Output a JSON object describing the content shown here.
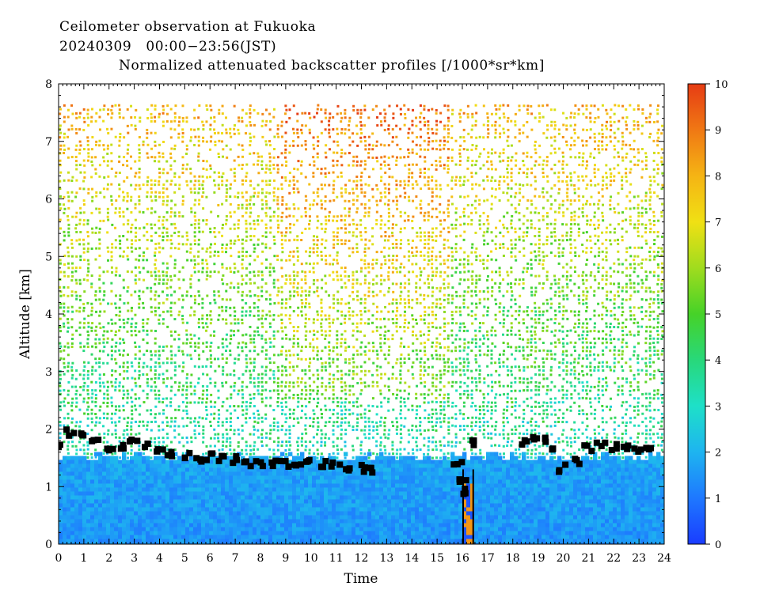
{
  "header": {
    "title": "Ceilometer observation at Fukuoka",
    "date_range": "20240309   00:00−23:56(JST)",
    "subtitle": "Normalized attenuated backscatter profiles [/1000*sr*km]"
  },
  "chart_data": {
    "type": "heatmap",
    "title": "Normalized attenuated backscatter profiles [/1000*sr*km]",
    "xlabel": "Time",
    "ylabel": "Altitude [km]",
    "xlim": [
      0,
      24
    ],
    "ylim": [
      0,
      8
    ],
    "x_ticks": [
      "0",
      "1",
      "2",
      "3",
      "4",
      "5",
      "6",
      "7",
      "8",
      "9",
      "10",
      "11",
      "12",
      "13",
      "14",
      "15",
      "16",
      "17",
      "18",
      "19",
      "20",
      "21",
      "22",
      "23",
      "24"
    ],
    "y_ticks": [
      "0",
      "1",
      "2",
      "3",
      "4",
      "5",
      "6",
      "7",
      "8"
    ],
    "data_top_km": 7.65,
    "colorbar": {
      "range": [
        0,
        10
      ],
      "ticks": [
        "0",
        "1",
        "2",
        "3",
        "4",
        "5",
        "6",
        "7",
        "8",
        "9",
        "10"
      ],
      "colors": [
        "#1a3cff",
        "#1e78ff",
        "#1eb4f0",
        "#1ee0c8",
        "#28d87a",
        "#46d228",
        "#a0dc1e",
        "#f0e014",
        "#f5b414",
        "#f07814",
        "#e63c14"
      ]
    },
    "cloud_base_km": [
      {
        "t": 0.1,
        "h": 1.75
      },
      {
        "t": 0.5,
        "h": 1.95
      },
      {
        "t": 1.0,
        "h": 1.88
      },
      {
        "t": 1.5,
        "h": 1.78
      },
      {
        "t": 2.0,
        "h": 1.7
      },
      {
        "t": 2.5,
        "h": 1.68
      },
      {
        "t": 3.0,
        "h": 1.75
      },
      {
        "t": 3.5,
        "h": 1.72
      },
      {
        "t": 4.0,
        "h": 1.62
      },
      {
        "t": 4.5,
        "h": 1.55
      },
      {
        "t": 5.0,
        "h": 1.52
      },
      {
        "t": 5.5,
        "h": 1.5
      },
      {
        "t": 6.0,
        "h": 1.52
      },
      {
        "t": 6.5,
        "h": 1.48
      },
      {
        "t": 7.0,
        "h": 1.48
      },
      {
        "t": 7.5,
        "h": 1.42
      },
      {
        "t": 8.0,
        "h": 1.42
      },
      {
        "t": 8.5,
        "h": 1.4
      },
      {
        "t": 9.0,
        "h": 1.38
      },
      {
        "t": 9.5,
        "h": 1.42
      },
      {
        "t": 10.0,
        "h": 1.45
      },
      {
        "t": 10.5,
        "h": 1.38
      },
      {
        "t": 11.0,
        "h": 1.35
      },
      {
        "t": 11.5,
        "h": 1.32
      },
      {
        "t": 12.0,
        "h": 1.32
      },
      {
        "t": 12.4,
        "h": 1.3
      },
      {
        "t": 15.8,
        "h": 1.4
      },
      {
        "t": 16.0,
        "h": 1.15
      },
      {
        "t": 16.2,
        "h": 0.9
      },
      {
        "t": 16.5,
        "h": 1.75
      },
      {
        "t": 18.5,
        "h": 1.78
      },
      {
        "t": 18.9,
        "h": 1.8
      },
      {
        "t": 19.3,
        "h": 1.78
      },
      {
        "t": 19.6,
        "h": 1.62
      },
      {
        "t": 20.0,
        "h": 1.32
      },
      {
        "t": 20.5,
        "h": 1.45
      },
      {
        "t": 21.0,
        "h": 1.65
      },
      {
        "t": 21.5,
        "h": 1.72
      },
      {
        "t": 22.0,
        "h": 1.68
      },
      {
        "t": 22.5,
        "h": 1.7
      },
      {
        "t": 23.0,
        "h": 1.67
      },
      {
        "t": 23.3,
        "h": 1.62
      }
    ],
    "aerosol_layer_top_km": 1.55,
    "precipitation_shaft": {
      "t_start": 16.0,
      "t_end": 16.4
    }
  }
}
